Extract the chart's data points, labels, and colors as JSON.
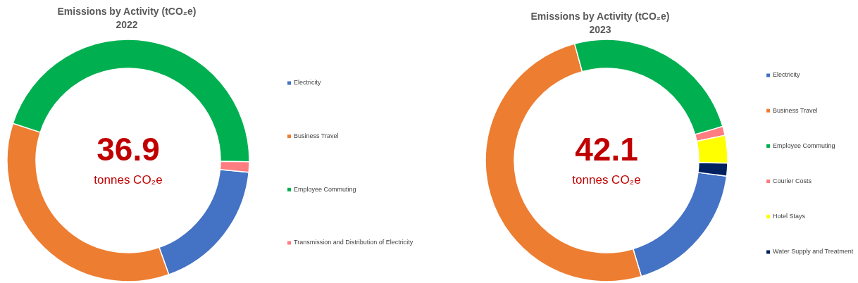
{
  "chart_data": [
    {
      "type": "donut",
      "title": "Emissions by Activity (tCO₂e)",
      "subtitle": "2022",
      "categories": [
        "Electricity",
        "Business Travel",
        "Employee Commuting",
        "Transmission and Distribution of Electricity"
      ],
      "values": [
        18,
        35.4,
        45.2,
        1.4
      ],
      "colors": [
        "#4472c4",
        "#ed7d31",
        "#00b050",
        "#ff7c80"
      ],
      "annotations": [
        "36.9",
        "tonnes CO₂e"
      ],
      "legend": "right"
    },
    {
      "type": "donut",
      "title": "Emissions by Activity (tCO₂e)",
      "subtitle": "2023",
      "categories": [
        "Electricity",
        "Business Travel",
        "Employee Commuting",
        "Courier Costs",
        "Hotel Stays",
        "Water Supply and Treatment"
      ],
      "values": [
        18.3,
        50.4,
        24.7,
        1.2,
        3.7,
        1.7
      ],
      "colors": [
        "#4472c4",
        "#ed7d31",
        "#00b050",
        "#ff7c80",
        "#ffff00",
        "#002060"
      ],
      "annotations": [
        "42.1",
        "tonnes CO₂e"
      ],
      "legend": "right"
    }
  ]
}
